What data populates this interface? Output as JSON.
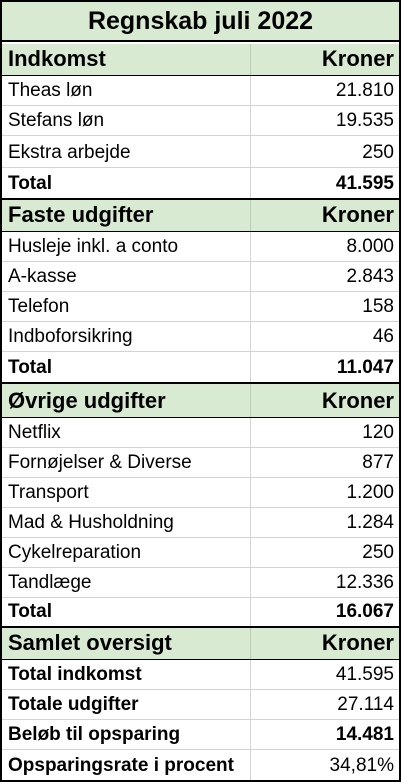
{
  "title": "Regnskab juli 2022",
  "income": {
    "header": "Indkomst",
    "header_col": "Kroner",
    "rows": [
      {
        "label": "Theas løn",
        "value": "21.810"
      },
      {
        "label": "Stefans løn",
        "value": "19.535"
      },
      {
        "label": "Ekstra arbejde",
        "value": "250"
      }
    ],
    "total_label": "Total",
    "total_value": "41.595"
  },
  "fixed": {
    "header": "Faste udgifter",
    "header_col": "Kroner",
    "rows": [
      {
        "label": "Husleje inkl. a conto",
        "value": "8.000"
      },
      {
        "label": "A-kasse",
        "value": "2.843"
      },
      {
        "label": "Telefon",
        "value": "158"
      },
      {
        "label": "Indboforsikring",
        "value": "46"
      }
    ],
    "total_label": "Total",
    "total_value": "11.047"
  },
  "other": {
    "header": "Øvrige udgifter",
    "header_col": "Kroner",
    "rows": [
      {
        "label": "Netflix",
        "value": "120"
      },
      {
        "label": "Fornøjelser & Diverse",
        "value": "877"
      },
      {
        "label": "Transport",
        "value": "1.200"
      },
      {
        "label": "Mad & Husholdning",
        "value": "1.284"
      },
      {
        "label": "Cykelreparation",
        "value": "250"
      },
      {
        "label": "Tandlæge",
        "value": "12.336"
      }
    ],
    "total_label": "Total",
    "total_value": "16.067"
  },
  "summary": {
    "header": "Samlet oversigt",
    "header_col": "Kroner",
    "rows": [
      {
        "label": "Total indkomst",
        "value": "41.595"
      },
      {
        "label": "Totale udgifter",
        "value": "27.114"
      },
      {
        "label": "Beløb til opsparing",
        "value": "14.481"
      },
      {
        "label": "Opsparingsrate i procent",
        "value": "34,81%"
      }
    ]
  },
  "colors": {
    "header_fill": "#d9ead3",
    "grid_line": "#d4d4d4",
    "border": "#000000"
  }
}
